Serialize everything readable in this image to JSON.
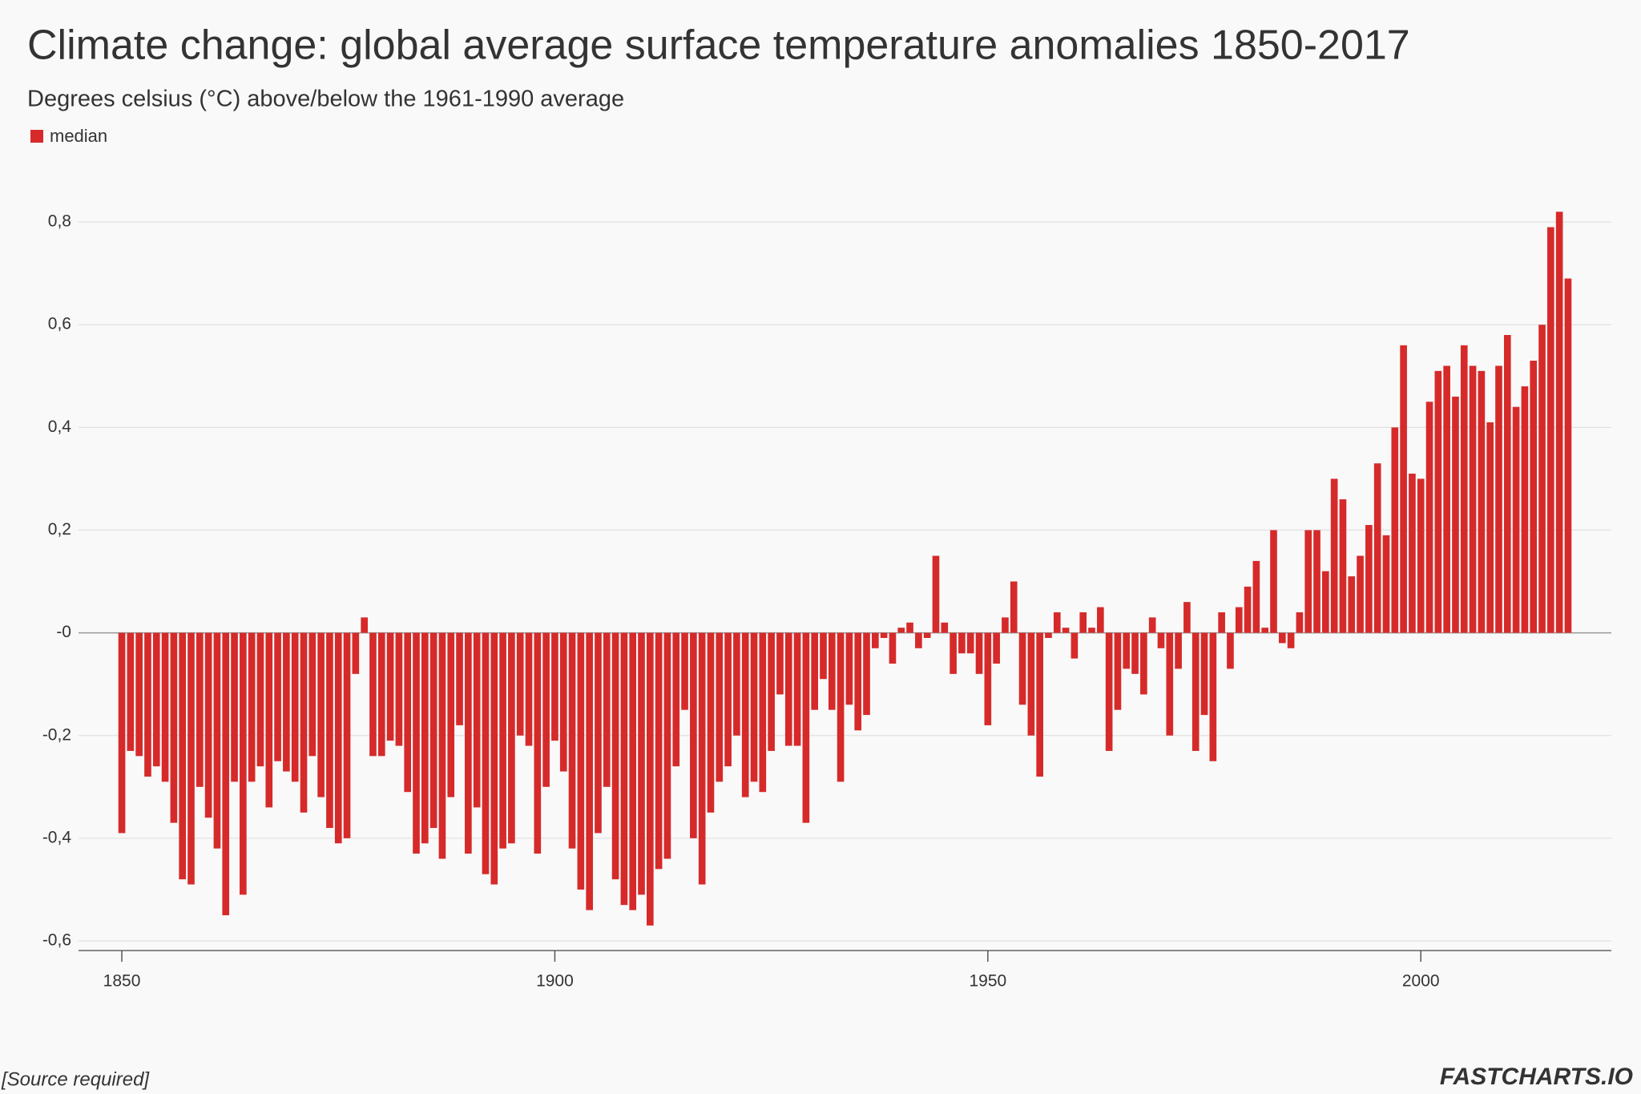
{
  "chart_data": {
    "type": "bar",
    "title": "Climate change: global average surface temperature anomalies 1850-2017",
    "subtitle": "Degrees celsius (°C) above/below the 1961-1990 average",
    "source": "[Source required]",
    "brand": "FASTCHARTS.IO",
    "x": [
      1850,
      1851,
      1852,
      1853,
      1854,
      1855,
      1856,
      1857,
      1858,
      1859,
      1860,
      1861,
      1862,
      1863,
      1864,
      1865,
      1866,
      1867,
      1868,
      1869,
      1870,
      1871,
      1872,
      1873,
      1874,
      1875,
      1876,
      1877,
      1878,
      1879,
      1880,
      1881,
      1882,
      1883,
      1884,
      1885,
      1886,
      1887,
      1888,
      1889,
      1890,
      1891,
      1892,
      1893,
      1894,
      1895,
      1896,
      1897,
      1898,
      1899,
      1900,
      1901,
      1902,
      1903,
      1904,
      1905,
      1906,
      1907,
      1908,
      1909,
      1910,
      1911,
      1912,
      1913,
      1914,
      1915,
      1916,
      1917,
      1918,
      1919,
      1920,
      1921,
      1922,
      1923,
      1924,
      1925,
      1926,
      1927,
      1928,
      1929,
      1930,
      1931,
      1932,
      1933,
      1934,
      1935,
      1936,
      1937,
      1938,
      1939,
      1940,
      1941,
      1942,
      1943,
      1944,
      1945,
      1946,
      1947,
      1948,
      1949,
      1950,
      1951,
      1952,
      1953,
      1954,
      1955,
      1956,
      1957,
      1958,
      1959,
      1960,
      1961,
      1962,
      1963,
      1964,
      1965,
      1966,
      1967,
      1968,
      1969,
      1970,
      1971,
      1972,
      1973,
      1974,
      1975,
      1976,
      1977,
      1978,
      1979,
      1980,
      1981,
      1982,
      1983,
      1984,
      1985,
      1986,
      1987,
      1988,
      1989,
      1990,
      1991,
      1992,
      1993,
      1994,
      1995,
      1996,
      1997,
      1998,
      1999,
      2000,
      2001,
      2002,
      2003,
      2004,
      2005,
      2006,
      2007,
      2008,
      2009,
      2010,
      2011,
      2012,
      2013,
      2014,
      2015,
      2016,
      2017
    ],
    "series": [
      {
        "name": "median",
        "color": "#d62a2a",
        "values": [
          -0.39,
          -0.23,
          -0.24,
          -0.28,
          -0.26,
          -0.29,
          -0.37,
          -0.48,
          -0.49,
          -0.3,
          -0.36,
          -0.42,
          -0.55,
          -0.29,
          -0.51,
          -0.29,
          -0.26,
          -0.34,
          -0.25,
          -0.27,
          -0.29,
          -0.35,
          -0.24,
          -0.32,
          -0.38,
          -0.41,
          -0.4,
          -0.08,
          0.03,
          -0.24,
          -0.24,
          -0.21,
          -0.22,
          -0.31,
          -0.43,
          -0.41,
          -0.38,
          -0.44,
          -0.32,
          -0.18,
          -0.43,
          -0.34,
          -0.47,
          -0.49,
          -0.42,
          -0.41,
          -0.2,
          -0.22,
          -0.43,
          -0.3,
          -0.21,
          -0.27,
          -0.42,
          -0.5,
          -0.54,
          -0.39,
          -0.3,
          -0.48,
          -0.53,
          -0.54,
          -0.51,
          -0.57,
          -0.46,
          -0.44,
          -0.26,
          -0.15,
          -0.4,
          -0.49,
          -0.35,
          -0.29,
          -0.26,
          -0.2,
          -0.32,
          -0.29,
          -0.31,
          -0.23,
          -0.12,
          -0.22,
          -0.22,
          -0.37,
          -0.15,
          -0.09,
          -0.15,
          -0.29,
          -0.14,
          -0.19,
          -0.16,
          -0.03,
          -0.01,
          -0.06,
          0.01,
          0.02,
          -0.03,
          -0.01,
          0.15,
          0.02,
          -0.08,
          -0.04,
          -0.04,
          -0.08,
          -0.18,
          -0.06,
          0.03,
          0.1,
          -0.14,
          -0.2,
          -0.28,
          -0.01,
          0.04,
          0.01,
          -0.05,
          0.04,
          0.01,
          0.05,
          -0.23,
          -0.15,
          -0.07,
          -0.08,
          -0.12,
          0.03,
          -0.03,
          -0.2,
          -0.07,
          0.06,
          -0.23,
          -0.16,
          -0.25,
          0.04,
          -0.07,
          0.05,
          0.09,
          0.14,
          0.01,
          0.2,
          -0.02,
          -0.03,
          0.04,
          0.2,
          0.2,
          0.12,
          0.3,
          0.26,
          0.11,
          0.15,
          0.21,
          0.33,
          0.19,
          0.4,
          0.56,
          0.31,
          0.3,
          0.45,
          0.51,
          0.52,
          0.46,
          0.56,
          0.52,
          0.51,
          0.41,
          0.52,
          0.58,
          0.44,
          0.48,
          0.53,
          0.6,
          0.79,
          0.82,
          0.69
        ]
      }
    ],
    "xlim": [
      1845,
      2022
    ],
    "xticks": [
      1850,
      1900,
      1950,
      2000
    ],
    "ylim": [
      -0.6,
      0.85
    ],
    "yticks": [
      {
        "value": -0.6,
        "label": "-0,6"
      },
      {
        "value": -0.4,
        "label": "-0,4"
      },
      {
        "value": -0.2,
        "label": "-0,2"
      },
      {
        "value": 0,
        "label": "-0"
      },
      {
        "value": 0.2,
        "label": "0,2"
      },
      {
        "value": 0.4,
        "label": "0,4"
      },
      {
        "value": 0.6,
        "label": "0,6"
      },
      {
        "value": 0.8,
        "label": "0,8"
      }
    ],
    "grid": true,
    "legend": "top-left"
  }
}
